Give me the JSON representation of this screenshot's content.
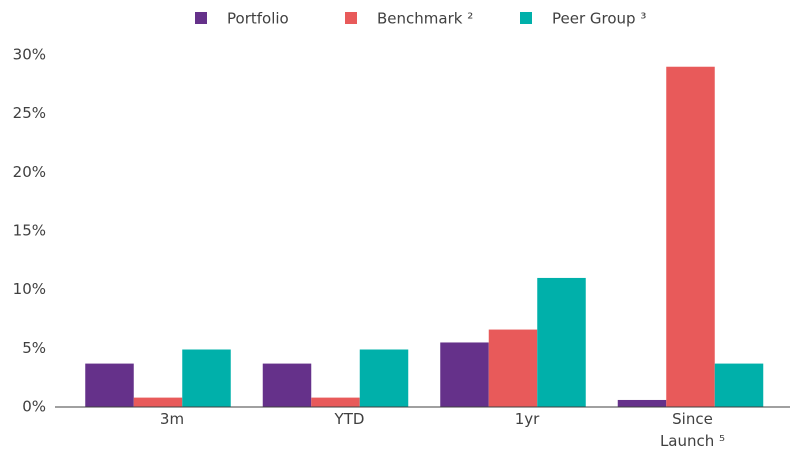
{
  "chart_data": {
    "type": "bar",
    "categories": [
      "3m",
      "YTD",
      "1yr",
      "Since Launch ⁵"
    ],
    "series": [
      {
        "name": "Portfolio",
        "color": "#65318a",
        "values": [
          3.7,
          3.7,
          5.5,
          0.6
        ]
      },
      {
        "name": "Benchmark ²",
        "color": "#e85a5a",
        "values": [
          0.8,
          0.8,
          6.6,
          29.0
        ]
      },
      {
        "name": "Peer Group ³",
        "color": "#00b0aa",
        "values": [
          4.9,
          4.9,
          11.0,
          3.7
        ]
      }
    ],
    "ylim": [
      0,
      30
    ],
    "yticks": [
      {
        "value": 0,
        "label": "0%"
      },
      {
        "value": 5,
        "label": "5%"
      },
      {
        "value": 10,
        "label": "10%"
      },
      {
        "value": 15,
        "label": "15%"
      },
      {
        "value": 20,
        "label": "20%"
      },
      {
        "value": 25,
        "label": "25%"
      },
      {
        "value": 30,
        "label": "30%"
      }
    ],
    "legend": "top",
    "grid": false
  }
}
